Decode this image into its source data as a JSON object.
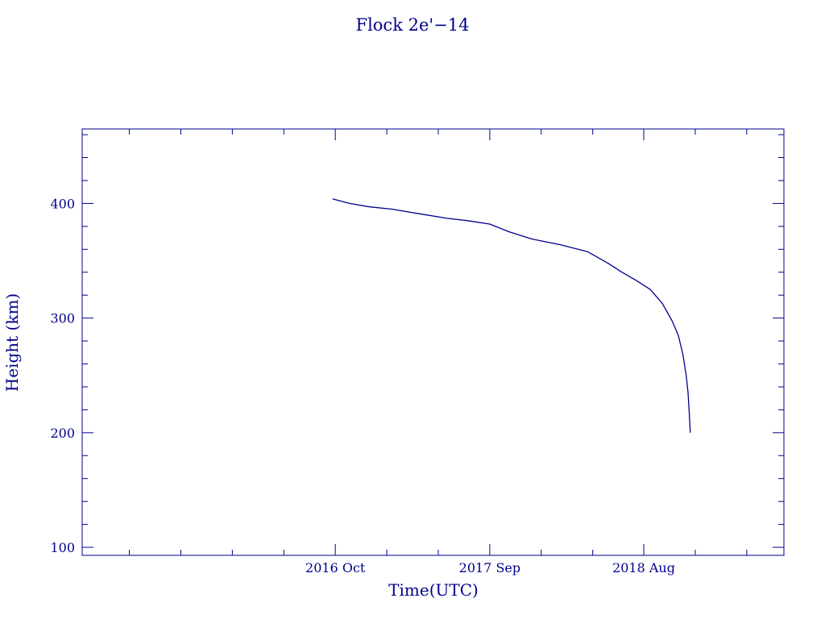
{
  "chart_data": {
    "type": "line",
    "title": "Flock 2e'−14",
    "xlabel": "Time(UTC)",
    "ylabel": "Height (km)",
    "color": "#00008B",
    "ylim": [
      93,
      465
    ],
    "xlim": [
      "2015-04-01",
      "2019-06-01"
    ],
    "grid": false,
    "x_ticks": [
      {
        "date": "2016-10-01",
        "label": "2016 Oct"
      },
      {
        "date": "2017-09-01",
        "label": "2017 Sep"
      },
      {
        "date": "2018-08-01",
        "label": "2018 Aug"
      }
    ],
    "y_ticks": [
      100,
      200,
      300,
      400
    ],
    "series": [
      {
        "x": [
          "2016-09-25",
          "2016-11-01",
          "2016-12-15",
          "2017-02-01",
          "2017-04-01",
          "2017-06-01",
          "2017-07-15",
          "2017-09-01",
          "2017-10-15",
          "2017-12-01",
          "2018-02-01",
          "2018-04-01",
          "2018-05-15",
          "2018-06-15",
          "2018-07-15",
          "2018-08-15",
          "2018-09-10",
          "2018-10-01",
          "2018-10-15",
          "2018-10-25",
          "2018-11-01",
          "2018-11-05",
          "2018-11-08",
          "2018-11-10"
        ],
        "y": [
          404,
          400,
          397,
          395,
          391,
          387,
          385,
          382,
          375,
          369,
          364,
          358,
          348,
          340,
          333,
          325,
          313,
          298,
          285,
          268,
          250,
          235,
          215,
          200
        ]
      }
    ]
  }
}
